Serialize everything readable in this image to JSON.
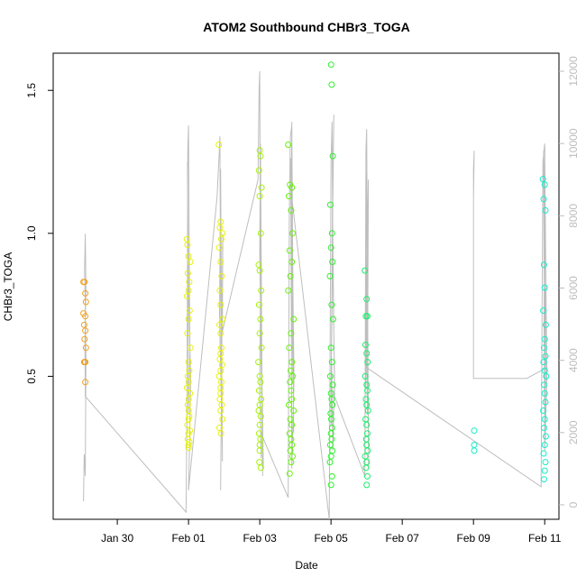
{
  "chart_data": {
    "type": "scatter",
    "title": "ATOM2 Southbound CHBr3_TOGA",
    "xlabel": "Date",
    "ylabel": "CHBr3_TOGA",
    "x_range_days": [
      -1.8,
      12.4
    ],
    "ylim": [
      0.0,
      1.63
    ],
    "y2lim": [
      -400,
      12500
    ],
    "x_ticks": [
      {
        "day": 0,
        "label": "Jan 30"
      },
      {
        "day": 2,
        "label": "Feb 01"
      },
      {
        "day": 4,
        "label": "Feb 03"
      },
      {
        "day": 6,
        "label": "Feb 05"
      },
      {
        "day": 8,
        "label": "Feb 07"
      },
      {
        "day": 10,
        "label": "Feb 09"
      },
      {
        "day": 12,
        "label": "Feb 11"
      }
    ],
    "y_ticks": [
      0.5,
      1.0,
      1.5
    ],
    "y_tick_labels": [
      "0.5",
      "1.0",
      "1.5"
    ],
    "y2_ticks": [
      0,
      2000,
      4000,
      6000,
      8000,
      10000,
      12000
    ],
    "y2_tick_labels": [
      "0",
      "2000",
      "4000",
      "6000",
      "8000",
      "10000",
      "12000"
    ],
    "secondary_series_color": "#bebebe",
    "point_series": [
      {
        "color": "#f0a020",
        "x": [
          -0.95,
          -0.92,
          -0.9,
          -0.88,
          -0.95,
          -0.9,
          -0.93,
          -0.9,
          -0.92,
          -0.88,
          -0.91,
          -0.93,
          -0.9,
          -0.9
        ],
        "y": [
          0.83,
          0.83,
          0.79,
          0.76,
          0.72,
          0.71,
          0.68,
          0.66,
          0.63,
          0.6,
          0.55,
          0.55,
          0.55,
          0.48
        ]
      },
      {
        "color": "#e6f20a",
        "x": [
          1.95,
          1.97,
          2.0,
          2.05,
          1.98,
          2.02,
          2.0,
          1.96,
          2.03,
          2.0,
          1.97,
          2.05,
          2.0,
          2.02,
          1.98,
          2.0,
          1.96,
          2.04,
          2.0,
          1.98,
          2.0,
          2.02,
          2.0,
          1.97,
          2.04,
          2.0,
          1.98,
          2.02,
          2.0,
          2.0,
          2.85,
          2.9,
          2.88,
          2.95,
          2.92,
          2.86,
          2.9,
          2.93,
          2.88,
          2.9,
          2.95,
          2.87,
          2.9,
          2.92,
          2.9,
          2.88,
          2.94,
          2.9,
          2.86,
          2.92,
          2.9,
          2.9,
          2.88,
          2.93,
          2.9,
          2.95,
          2.87,
          2.91
        ],
        "y": [
          0.98,
          0.96,
          0.92,
          0.9,
          0.86,
          0.83,
          0.8,
          0.78,
          0.73,
          0.7,
          0.65,
          0.6,
          0.55,
          0.52,
          0.5,
          0.48,
          0.46,
          0.44,
          0.42,
          0.4,
          0.38,
          0.36,
          0.35,
          0.33,
          0.31,
          0.3,
          0.28,
          0.27,
          0.26,
          0.25,
          1.31,
          1.04,
          1.02,
          1.0,
          0.98,
          0.95,
          0.9,
          0.85,
          0.8,
          0.75,
          0.7,
          0.68,
          0.65,
          0.6,
          0.58,
          0.56,
          0.54,
          0.52,
          0.5,
          0.48,
          0.46,
          0.44,
          0.42,
          0.4,
          0.38,
          0.35,
          0.32,
          0.3
        ]
      },
      {
        "color": "#a6f20a",
        "x": [
          4.0,
          4.02,
          3.98,
          4.05,
          4.0,
          4.03,
          3.97,
          4.0,
          4.04,
          3.98,
          4.02,
          4.0,
          4.05,
          3.96,
          4.0,
          4.02,
          3.98,
          4.04,
          4.0,
          3.97,
          4.03,
          4.0,
          3.98,
          4.02,
          4.0,
          4.0,
          3.99,
          4.03
        ],
        "y": [
          1.29,
          1.27,
          1.22,
          1.16,
          1.13,
          1.0,
          0.89,
          0.87,
          0.8,
          0.75,
          0.7,
          0.65,
          0.6,
          0.55,
          0.5,
          0.48,
          0.45,
          0.42,
          0.4,
          0.38,
          0.36,
          0.33,
          0.3,
          0.28,
          0.26,
          0.24,
          0.2,
          0.18
        ]
      },
      {
        "color": "#66f00a",
        "x": [
          4.8,
          4.85,
          4.9,
          4.82,
          4.88,
          4.92,
          4.84,
          4.9,
          4.86,
          4.8,
          4.95,
          4.88,
          4.83,
          4.9,
          4.87,
          4.92,
          4.85,
          4.88,
          4.9,
          4.82,
          4.95,
          4.86,
          4.9,
          4.84,
          4.88,
          4.9,
          4.86,
          4.92,
          4.88,
          4.84
        ],
        "y": [
          1.31,
          1.17,
          1.16,
          1.13,
          1.08,
          1.0,
          0.94,
          0.9,
          0.85,
          0.8,
          0.7,
          0.65,
          0.6,
          0.55,
          0.52,
          0.5,
          0.48,
          0.45,
          0.42,
          0.4,
          0.38,
          0.35,
          0.33,
          0.3,
          0.28,
          0.26,
          0.24,
          0.22,
          0.2,
          0.16
        ]
      },
      {
        "color": "#2ef02e",
        "x": [
          6.0,
          6.02,
          6.05,
          5.98,
          6.03,
          6.0,
          6.04,
          5.97,
          6.02,
          6.06,
          6.0,
          6.03,
          5.98,
          6.05,
          6.0,
          6.02,
          6.04,
          5.99,
          6.01,
          6.03,
          6.0,
          6.02,
          5.98,
          6.04,
          6.0,
          5.97,
          6.03,
          6.0
        ],
        "y": [
          1.59,
          1.52,
          1.27,
          1.1,
          1.0,
          0.95,
          0.9,
          0.85,
          0.75,
          0.7,
          0.6,
          0.55,
          0.5,
          0.47,
          0.44,
          0.42,
          0.4,
          0.37,
          0.35,
          0.32,
          0.3,
          0.28,
          0.26,
          0.24,
          0.22,
          0.2,
          0.15,
          0.12
        ]
      },
      {
        "color": "#1aee6a",
        "x": [
          6.95,
          7.0,
          6.98,
          7.02,
          6.97,
          7.0,
          7.03,
          6.96,
          7.0,
          7.02,
          6.98,
          7.0,
          7.04,
          6.97,
          7.0,
          7.02,
          6.99,
          7.0,
          7.03,
          6.96,
          7.0,
          6.98,
          7.02,
          7.0
        ],
        "y": [
          0.87,
          0.77,
          0.71,
          0.71,
          0.61,
          0.58,
          0.55,
          0.5,
          0.47,
          0.45,
          0.42,
          0.4,
          0.38,
          0.35,
          0.33,
          0.3,
          0.28,
          0.26,
          0.24,
          0.22,
          0.2,
          0.18,
          0.15,
          0.12
        ]
      },
      {
        "color": "#14eec8",
        "x": [
          10.02,
          10.02,
          10.02,
          11.95,
          12.0,
          11.97,
          12.02,
          11.98,
          12.0,
          11.96,
          12.03,
          12.0,
          11.98,
          12.02,
          11.97,
          12.0,
          12.04,
          11.98,
          12.0,
          12.02,
          11.96,
          12.0,
          11.98,
          12.03,
          12.0,
          11.97,
          12.02,
          12.0,
          11.98
        ],
        "y": [
          0.31,
          0.26,
          0.24,
          1.19,
          1.17,
          1.12,
          1.08,
          0.89,
          0.81,
          0.73,
          0.68,
          0.63,
          0.6,
          0.57,
          0.55,
          0.52,
          0.5,
          0.47,
          0.44,
          0.41,
          0.38,
          0.35,
          0.32,
          0.29,
          0.26,
          0.23,
          0.2,
          0.17,
          0.14
        ]
      }
    ],
    "line_series": {
      "color": "#bebebe",
      "x": [
        -0.95,
        -0.93,
        -0.9,
        -0.88,
        -0.9,
        -0.92,
        -0.9,
        -0.88,
        -0.91,
        -0.9,
        1.93,
        1.96,
        1.98,
        2.0,
        2.02,
        2.04,
        2.0,
        1.97,
        2.0,
        2.06,
        2.02,
        2.0,
        2.8,
        2.86,
        2.88,
        2.9,
        2.93,
        2.95,
        2.9,
        2.87,
        2.92,
        2.9,
        2.96,
        2.95,
        3.95,
        3.98,
        4.0,
        4.02,
        4.05,
        4.08,
        4.02,
        4.0,
        4.04,
        4.1,
        4.02,
        4.0,
        4.04,
        4.03,
        4.8,
        4.83,
        4.86,
        4.9,
        4.93,
        4.96,
        4.9,
        4.87,
        4.92,
        4.95,
        4.9,
        4.88,
        4.93,
        4.9,
        5.95,
        6.0,
        6.03,
        6.06,
        6.1,
        6.05,
        6.02,
        6.0,
        6.04,
        6.08,
        6.03,
        6.0,
        6.05,
        6.1,
        6.95,
        6.98,
        7.0,
        7.02,
        7.04,
        7.06,
        7.0,
        6.98,
        7.02,
        7.05,
        7.0,
        6.97,
        7.03,
        7.0,
        11.9,
        11.95,
        12.0,
        12.03,
        12.06,
        12.0,
        11.97,
        12.02,
        12.05,
        12.0,
        11.98,
        12.02,
        12.0,
        12.06,
        11.5,
        11.0,
        10.0,
        10.0,
        10.02,
        10.0
      ],
      "y": [
        100,
        1400,
        800,
        4000,
        5500,
        6500,
        7500,
        6000,
        4500,
        3000,
        -200,
        3000,
        9800,
        10500,
        7000,
        4200,
        2500,
        9500,
        6000,
        3500,
        1200,
        400,
        8500,
        9700,
        10200,
        5800,
        3000,
        1200,
        9300,
        5200,
        2800,
        400,
        7500,
        4800,
        9000,
        11500,
        12000,
        6500,
        3500,
        800,
        10000,
        7000,
        4000,
        1000,
        6000,
        3200,
        1300,
        2000,
        200,
        8000,
        10200,
        10500,
        6000,
        3500,
        1000,
        9600,
        5800,
        2000,
        10600,
        7000,
        3500,
        8500,
        -400,
        9500,
        10600,
        6000,
        3500,
        1500,
        4000,
        2200,
        8200,
        10800,
        6500,
        3000,
        7500,
        3000,
        800,
        9800,
        10400,
        7000,
        3000,
        1000,
        9200,
        5800,
        2500,
        9000,
        6000,
        3200,
        7500,
        3800,
        500,
        9500,
        10000,
        6500,
        3500,
        1500,
        9800,
        7000,
        3000,
        8500,
        5000,
        1800,
        6000,
        3800,
        3500,
        3500,
        3500,
        9300,
        9800,
        8500
      ]
    }
  }
}
